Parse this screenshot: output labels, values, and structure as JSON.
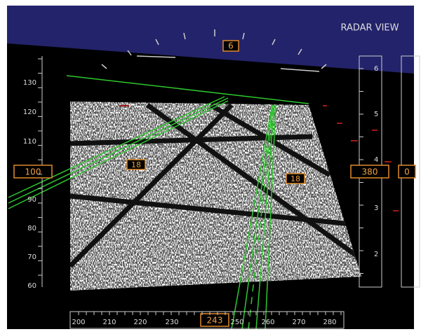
{
  "header": {
    "title": "RADAR VIEW"
  },
  "heading_bug": "6",
  "speed_tape": {
    "labels": [
      "130",
      "120",
      "110",
      "90",
      "80",
      "70",
      "60"
    ],
    "current": "100"
  },
  "altitude_tape": {
    "labels": [
      "6",
      "5",
      "4",
      "3",
      "2"
    ],
    "current": "380"
  },
  "vertical_speed": {
    "current": "0"
  },
  "heading_tape": {
    "labels": [
      "200",
      "210",
      "220",
      "230",
      "250",
      "260",
      "270",
      "280"
    ],
    "current": "243"
  },
  "runway_markers": [
    "18",
    "18"
  ]
}
